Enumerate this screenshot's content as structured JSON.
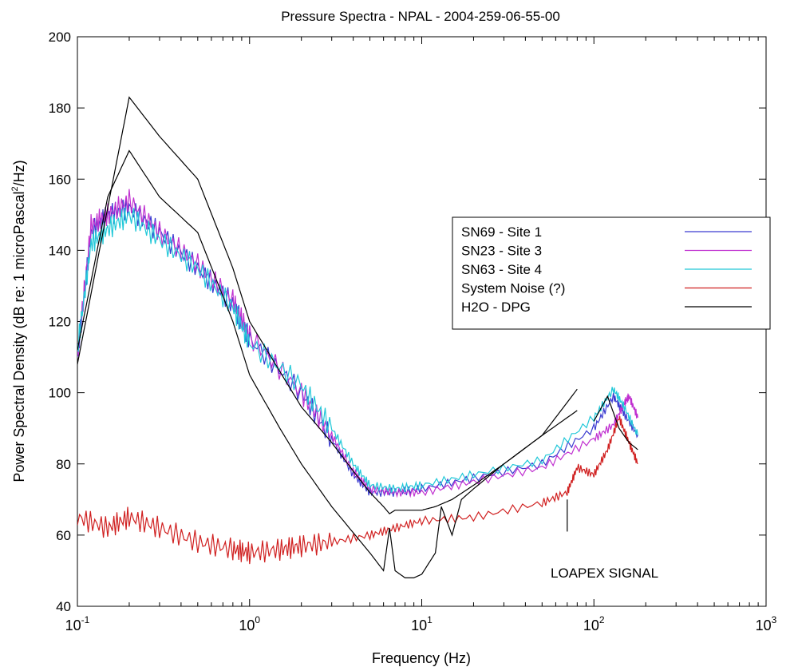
{
  "chart_data": {
    "type": "line",
    "title": "Pressure Spectra - NPAL - 2004-259-06-55-00",
    "xlabel": "Frequency (Hz)",
    "ylabel_pre": "Power Spectral Density (dB re: 1 microPascal",
    "ylabel_sup": "2",
    "ylabel_post": "/Hz)",
    "x_scale": "log",
    "xlim": [
      0.1,
      1000
    ],
    "ylim": [
      40,
      200
    ],
    "x_ticks": [
      {
        "value": 0.1,
        "base": "10",
        "exp": "-1"
      },
      {
        "value": 1,
        "base": "10",
        "exp": "0"
      },
      {
        "value": 10,
        "base": "10",
        "exp": "1"
      },
      {
        "value": 100,
        "base": "10",
        "exp": "2"
      },
      {
        "value": 1000,
        "base": "10",
        "exp": "3"
      }
    ],
    "y_ticks": [
      "40",
      "60",
      "80",
      "100",
      "120",
      "140",
      "160",
      "180",
      "200"
    ],
    "grid": false,
    "legend_position": "right",
    "annotation": {
      "text": "LOAPEX SIGNAL",
      "x": 70,
      "y_from": 61,
      "y_to": 70
    },
    "series": [
      {
        "name": "SN69 - Site 1",
        "color": "#3b3bd0",
        "x": [
          0.1,
          0.12,
          0.15,
          0.2,
          0.3,
          0.5,
          0.8,
          1,
          2,
          3,
          4,
          5,
          7,
          10,
          20,
          50,
          100,
          130,
          150,
          180
        ],
        "y": [
          110,
          145,
          150,
          152,
          145,
          135,
          125,
          115,
          100,
          87,
          77,
          72,
          72,
          73,
          76,
          80,
          90,
          99,
          94,
          88
        ]
      },
      {
        "name": "SN23 - Site 3",
        "color": "#c030d0",
        "x": [
          0.1,
          0.12,
          0.15,
          0.2,
          0.3,
          0.5,
          0.8,
          1,
          2,
          3,
          4,
          5,
          7,
          10,
          20,
          50,
          100,
          130,
          150,
          160,
          180
        ],
        "y": [
          110,
          147,
          150,
          154,
          145,
          136,
          126,
          116,
          100,
          88,
          78,
          73,
          72,
          72,
          75,
          79,
          87,
          91,
          97,
          99,
          93
        ]
      },
      {
        "name": "SN63 - Site 4",
        "color": "#20c8d8",
        "x": [
          0.1,
          0.12,
          0.15,
          0.2,
          0.3,
          0.5,
          0.8,
          1,
          2,
          3,
          4,
          5,
          7,
          10,
          20,
          50,
          100,
          130,
          150,
          180
        ],
        "y": [
          112,
          142,
          146,
          150,
          143,
          135,
          124,
          114,
          102,
          90,
          80,
          74,
          73,
          74,
          77,
          81,
          93,
          101,
          96,
          88
        ]
      },
      {
        "name": "System Noise (?)",
        "color": "#d02020",
        "x": [
          0.1,
          0.15,
          0.2,
          0.3,
          0.5,
          0.8,
          1,
          1.5,
          2,
          3,
          5,
          7,
          10,
          20,
          50,
          70,
          80,
          100,
          120,
          140,
          160,
          180
        ],
        "y": [
          65,
          62,
          65,
          62,
          58,
          56,
          55,
          56,
          57,
          58,
          60,
          62,
          64,
          65,
          69,
          72,
          79,
          77,
          84,
          93,
          86,
          80
        ]
      },
      {
        "name": "H2O - DPG",
        "color": "#000000",
        "x": [
          0.1,
          0.15,
          0.2,
          0.3,
          0.5,
          0.8,
          1,
          2,
          3,
          4,
          5,
          6,
          6.5,
          7,
          8,
          9,
          10,
          12,
          15,
          20,
          30,
          50,
          80
        ],
        "y": [
          108,
          152,
          183,
          172,
          160,
          135,
          120,
          96,
          86,
          78,
          72,
          68,
          66,
          67,
          67,
          67,
          67,
          68,
          70,
          74,
          80,
          88,
          101
        ]
      },
      {
        "name": "",
        "color": "#000000",
        "x": [
          0.1,
          0.15,
          0.2,
          0.3,
          0.5,
          0.8,
          1,
          1.5,
          2,
          3,
          5,
          6,
          6.5,
          7,
          8,
          9,
          10,
          12,
          13,
          15,
          17,
          20,
          30,
          50,
          80
        ],
        "y": [
          112,
          155,
          168,
          155,
          145,
          120,
          105,
          90,
          80,
          68,
          55,
          50,
          62,
          50,
          48,
          48,
          49,
          55,
          68,
          60,
          70,
          73,
          80,
          88,
          95
        ]
      },
      {
        "name": "",
        "color": "#000000",
        "x": [
          100,
          120,
          140,
          160,
          180
        ],
        "y": [
          92,
          99,
          90,
          86,
          84
        ]
      }
    ]
  }
}
